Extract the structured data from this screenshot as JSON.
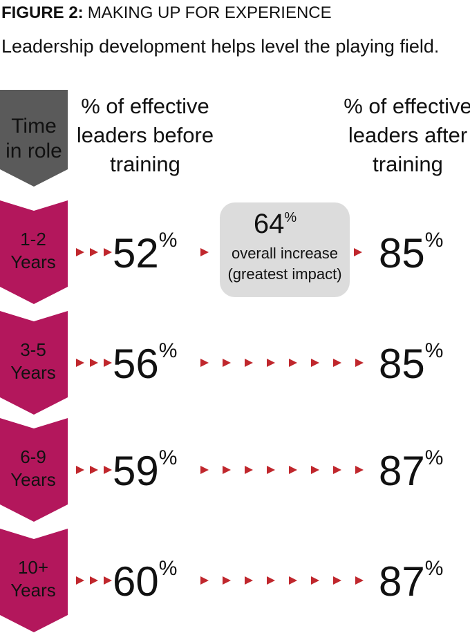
{
  "header": {
    "figure": "FIGURE 2:",
    "title": "MAKING UP FOR EXPERIENCE",
    "subtitle": "Leadership development helps level the playing field."
  },
  "columns": {
    "time": [
      "Time",
      "in role"
    ],
    "before": [
      "% of effective",
      "leaders before",
      "training"
    ],
    "after": [
      "% of effective",
      "leaders after",
      "training"
    ]
  },
  "rows": [
    {
      "label": [
        "1-2",
        "Years"
      ],
      "before": {
        "number": "52",
        "unit": "%"
      },
      "after": {
        "number": "85",
        "unit": "%"
      }
    },
    {
      "label": [
        "3-5",
        "Years"
      ],
      "before": {
        "number": "56",
        "unit": "%"
      },
      "after": {
        "number": "85",
        "unit": "%"
      }
    },
    {
      "label": [
        "6-9",
        "Years"
      ],
      "before": {
        "number": "59",
        "unit": "%"
      },
      "after": {
        "number": "87",
        "unit": "%"
      }
    },
    {
      "label": [
        "10+",
        "Years"
      ],
      "before": {
        "number": "60",
        "unit": "%"
      },
      "after": {
        "number": "87",
        "unit": "%"
      }
    }
  ],
  "callout": {
    "number": "64",
    "unit": "%",
    "lines": [
      "overall increase",
      "(greatest impact)"
    ]
  }
}
